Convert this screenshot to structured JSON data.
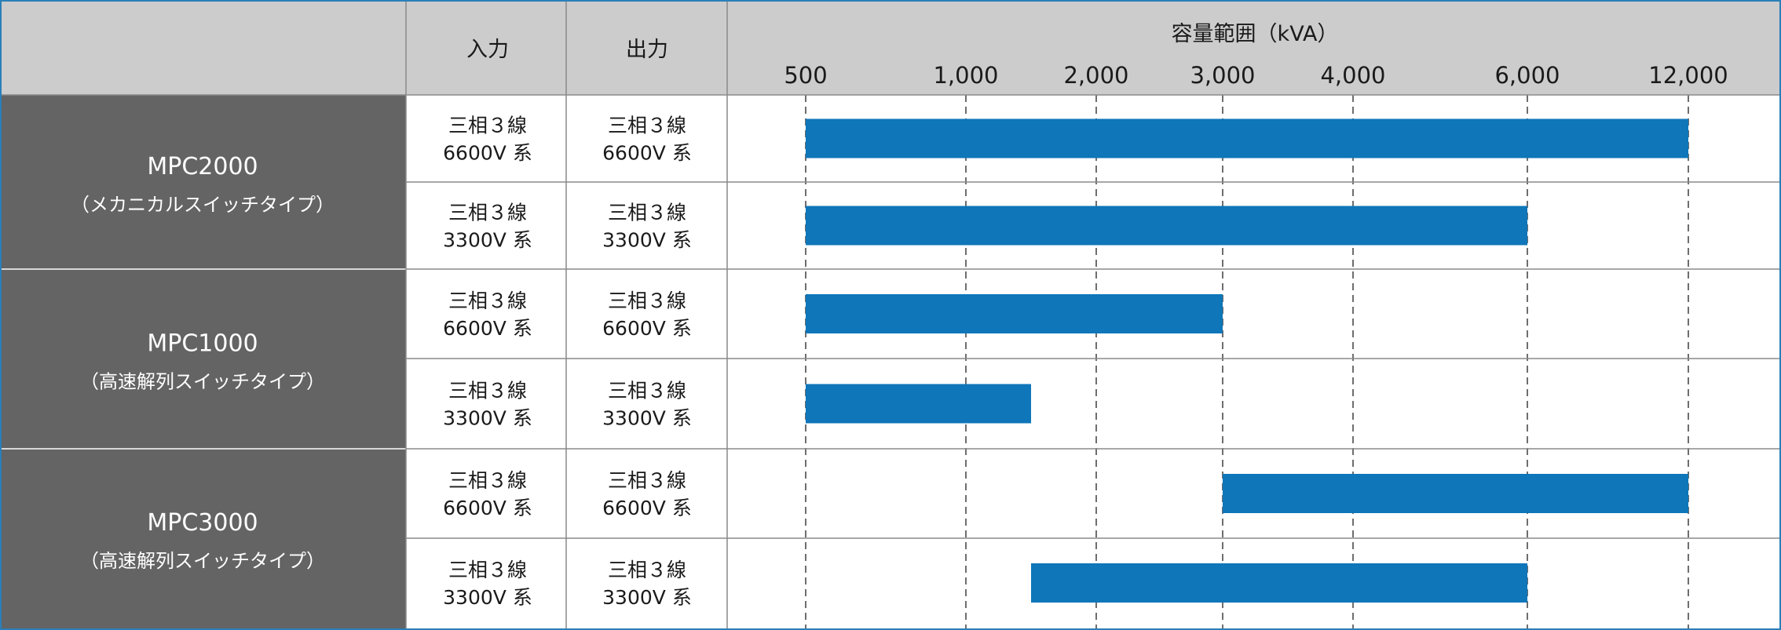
{
  "chart_data": {
    "type": "bar",
    "orientation": "horizontal-range",
    "title": "容量範囲（kVA）",
    "column_headers": {
      "input": "入力",
      "output": "出力"
    },
    "ticks": [
      "500",
      "1,000",
      "2,000",
      "3,000",
      "4,000",
      "6,000",
      "12,000"
    ],
    "grid": "dashed-vertical",
    "bar_color": "#0e76b9",
    "groups": [
      {
        "model": "MPC2000",
        "subtitle": "（メカニカルスイッチタイプ）",
        "rows": [
          {
            "input_line1": "三相３線",
            "input_line2": "6600V 系",
            "output_line1": "三相３線",
            "output_line2": "6600V 系",
            "from": "500",
            "to": "12,000"
          },
          {
            "input_line1": "三相３線",
            "input_line2": "3300V 系",
            "output_line1": "三相３線",
            "output_line2": "3300V 系",
            "from": "500",
            "to": "6,000"
          }
        ]
      },
      {
        "model": "MPC1000",
        "subtitle": "（高速解列スイッチタイプ）",
        "rows": [
          {
            "input_line1": "三相３線",
            "input_line2": "6600V 系",
            "output_line1": "三相３線",
            "output_line2": "6600V 系",
            "from": "500",
            "to": "3,000"
          },
          {
            "input_line1": "三相３線",
            "input_line2": "3300V 系",
            "output_line1": "三相３線",
            "output_line2": "3300V 系",
            "from": "500",
            "to": "1,500"
          }
        ]
      },
      {
        "model": "MPC3000",
        "subtitle": "（高速解列スイッチタイプ）",
        "rows": [
          {
            "input_line1": "三相３線",
            "input_line2": "6600V 系",
            "output_line1": "三相３線",
            "output_line2": "6600V 系",
            "from": "3,000",
            "to": "12,000"
          },
          {
            "input_line1": "三相３線",
            "input_line2": "3300V 系",
            "output_line1": "三相３線",
            "output_line2": "3300V 系",
            "from": "1,500",
            "to": "6,000"
          }
        ]
      }
    ]
  }
}
